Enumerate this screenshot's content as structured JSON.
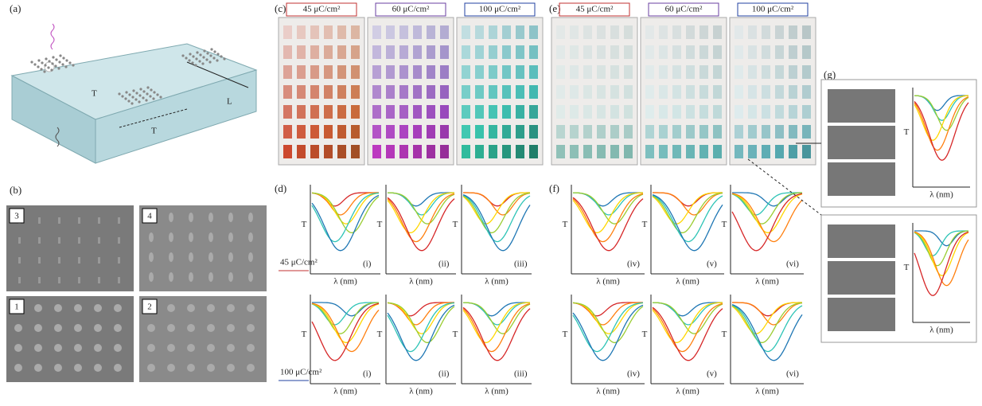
{
  "labels": {
    "a": "(a)",
    "b": "(b)",
    "c": "(c)",
    "d": "(d)",
    "e": "(e)",
    "f": "(f)",
    "g": "(g)"
  },
  "panel_a": {
    "t_label": "T",
    "l_label": "L"
  },
  "panel_b": {
    "tiles": [
      "3",
      "4",
      "1",
      "2"
    ]
  },
  "panel_c": {
    "headers": [
      "45 μC/cm²",
      "60 μC/cm²",
      "100 μC/cm²"
    ]
  },
  "panel_e": {
    "headers": [
      "45 μC/cm²",
      "60 μC/cm²",
      "100 μC/cm²"
    ]
  },
  "panel_d": {
    "plots": [
      "(i)",
      "(ii)",
      "(iii)",
      "(i)",
      "(ii)",
      "(iii)"
    ],
    "doses": [
      "45 μC/cm²",
      "100 μC/cm²"
    ],
    "x_label": "λ (nm)",
    "y_label": "T"
  },
  "panel_f": {
    "plots": [
      "(iv)",
      "(v)",
      "(vi)",
      "(iv)",
      "(v)",
      "(vi)"
    ],
    "x_label": "λ (nm)",
    "y_label": "T"
  },
  "panel_g": {
    "x_label": "λ (nm)",
    "y_label": "T"
  }
}
